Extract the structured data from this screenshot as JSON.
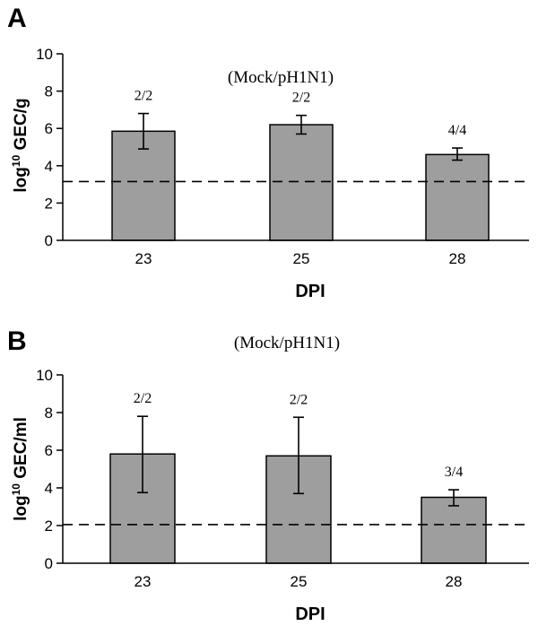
{
  "chart_data": [
    {
      "panel": "A",
      "type": "bar",
      "subtitle": "(Mock/pH1N1)",
      "ylabel_pre": "log",
      "ylabel_sup": "10",
      "ylabel_post": " GEC/g",
      "xlabel": "DPI",
      "categories": [
        "23",
        "25",
        "28"
      ],
      "values": [
        5.85,
        6.2,
        4.6
      ],
      "error_low": [
        4.9,
        5.7,
        4.3
      ],
      "error_high": [
        6.8,
        6.7,
        4.95
      ],
      "annotations": [
        "2/2",
        "2/2",
        "4/4"
      ],
      "threshold": 3.15,
      "ylim": [
        0,
        10
      ],
      "yticks": [
        "0",
        "2",
        "4",
        "6",
        "8",
        "10"
      ]
    },
    {
      "panel": "B",
      "type": "bar",
      "subtitle": "(Mock/pH1N1)",
      "ylabel_pre": "log",
      "ylabel_sup": "10",
      "ylabel_post": " GEC/ml",
      "xlabel": "DPI",
      "categories": [
        "23",
        "25",
        "28"
      ],
      "values": [
        5.8,
        5.7,
        3.5
      ],
      "error_low": [
        3.75,
        3.7,
        3.05
      ],
      "error_high": [
        7.8,
        7.75,
        3.9
      ],
      "annotations": [
        "2/2",
        "2/2",
        "3/4"
      ],
      "threshold": 2.05,
      "ylim": [
        0,
        10
      ],
      "yticks": [
        "0",
        "2",
        "4",
        "6",
        "8",
        "10"
      ]
    }
  ]
}
